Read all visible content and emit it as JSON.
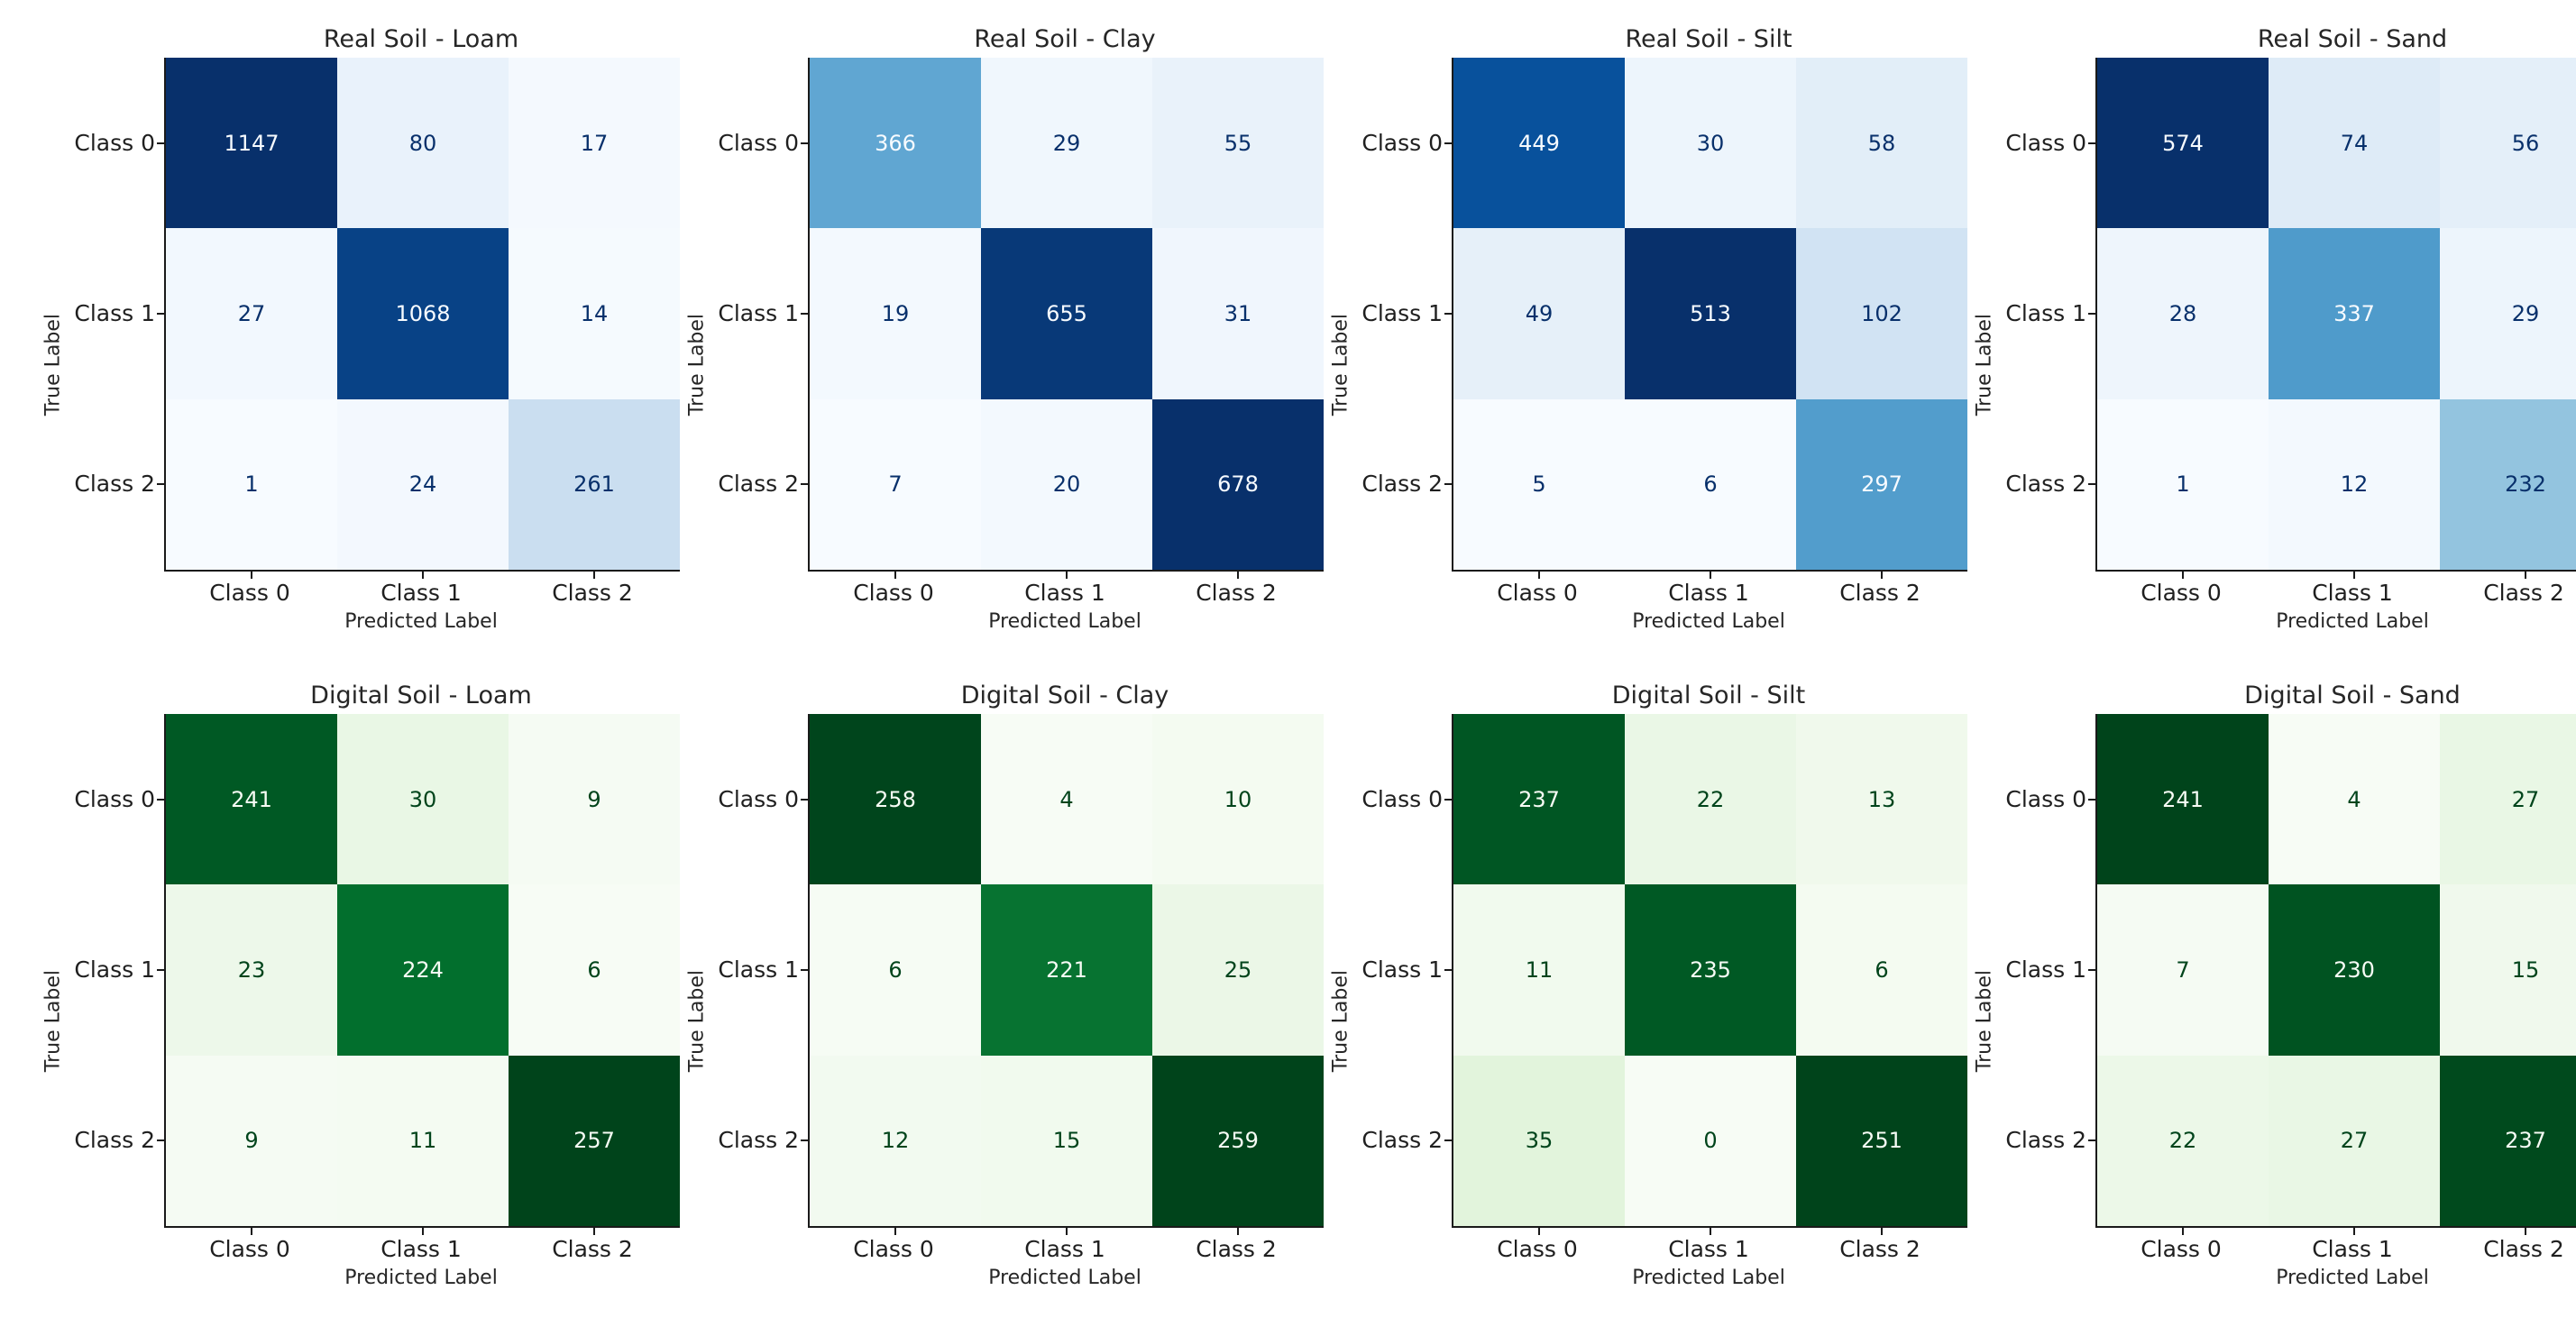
{
  "figure": {
    "background": "#ffffff",
    "spine_color": "#1a1a1a",
    "grid_color": "#c9c9c9",
    "text_color": "#262626"
  },
  "labels": {
    "x_axis": "Predicted Label",
    "y_axis": "True Label",
    "classes": [
      "Class 0",
      "Class 1",
      "Class 2"
    ]
  },
  "colormaps": {
    "Blues": [
      "#f7fbff",
      "#deebf7",
      "#c6dbef",
      "#9ecae1",
      "#6baed6",
      "#4292c6",
      "#2171b5",
      "#08519c",
      "#08306b"
    ],
    "Greens": [
      "#f7fcf5",
      "#e5f5e0",
      "#c7e9c0",
      "#a1d99b",
      "#74c476",
      "#41ab5d",
      "#238b45",
      "#006d2c",
      "#00441b"
    ]
  },
  "chart_data": [
    {
      "type": "heatmap",
      "title": "Real Soil - Loam",
      "colormap": "Blues",
      "xlabel": "Predicted Label",
      "ylabel": "True Label",
      "x_categories": [
        "Class 0",
        "Class 1",
        "Class 2"
      ],
      "y_categories": [
        "Class 0",
        "Class 1",
        "Class 2"
      ],
      "matrix": [
        [
          1147,
          80,
          17
        ],
        [
          27,
          1068,
          14
        ],
        [
          1,
          24,
          261
        ]
      ]
    },
    {
      "type": "heatmap",
      "title": "Real Soil - Clay",
      "colormap": "Blues",
      "xlabel": "Predicted Label",
      "ylabel": "True Label",
      "x_categories": [
        "Class 0",
        "Class 1",
        "Class 2"
      ],
      "y_categories": [
        "Class 0",
        "Class 1",
        "Class 2"
      ],
      "matrix": [
        [
          366,
          29,
          55
        ],
        [
          19,
          655,
          31
        ],
        [
          7,
          20,
          678
        ]
      ]
    },
    {
      "type": "heatmap",
      "title": "Real Soil - Silt",
      "colormap": "Blues",
      "xlabel": "Predicted Label",
      "ylabel": "True Label",
      "x_categories": [
        "Class 0",
        "Class 1",
        "Class 2"
      ],
      "y_categories": [
        "Class 0",
        "Class 1",
        "Class 2"
      ],
      "matrix": [
        [
          449,
          30,
          58
        ],
        [
          49,
          513,
          102
        ],
        [
          5,
          6,
          297
        ]
      ]
    },
    {
      "type": "heatmap",
      "title": "Real Soil - Sand",
      "colormap": "Blues",
      "xlabel": "Predicted Label",
      "ylabel": "True Label",
      "x_categories": [
        "Class 0",
        "Class 1",
        "Class 2"
      ],
      "y_categories": [
        "Class 0",
        "Class 1",
        "Class 2"
      ],
      "matrix": [
        [
          574,
          74,
          56
        ],
        [
          28,
          337,
          29
        ],
        [
          1,
          12,
          232
        ]
      ]
    },
    {
      "type": "heatmap",
      "title": "Digital Soil - Loam",
      "colormap": "Greens",
      "xlabel": "Predicted Label",
      "ylabel": "True Label",
      "x_categories": [
        "Class 0",
        "Class 1",
        "Class 2"
      ],
      "y_categories": [
        "Class 0",
        "Class 1",
        "Class 2"
      ],
      "matrix": [
        [
          241,
          30,
          9
        ],
        [
          23,
          224,
          6
        ],
        [
          9,
          11,
          257
        ]
      ]
    },
    {
      "type": "heatmap",
      "title": "Digital Soil - Clay",
      "colormap": "Greens",
      "xlabel": "Predicted Label",
      "ylabel": "True Label",
      "x_categories": [
        "Class 0",
        "Class 1",
        "Class 2"
      ],
      "y_categories": [
        "Class 0",
        "Class 1",
        "Class 2"
      ],
      "matrix": [
        [
          258,
          4,
          10
        ],
        [
          6,
          221,
          25
        ],
        [
          12,
          15,
          259
        ]
      ]
    },
    {
      "type": "heatmap",
      "title": "Digital Soil - Silt",
      "colormap": "Greens",
      "xlabel": "Predicted Label",
      "ylabel": "True Label",
      "x_categories": [
        "Class 0",
        "Class 1",
        "Class 2"
      ],
      "y_categories": [
        "Class 0",
        "Class 1",
        "Class 2"
      ],
      "matrix": [
        [
          237,
          22,
          13
        ],
        [
          11,
          235,
          6
        ],
        [
          35,
          0,
          251
        ]
      ]
    },
    {
      "type": "heatmap",
      "title": "Digital Soil - Sand",
      "colormap": "Greens",
      "xlabel": "Predicted Label",
      "ylabel": "True Label",
      "x_categories": [
        "Class 0",
        "Class 1",
        "Class 2"
      ],
      "y_categories": [
        "Class 0",
        "Class 1",
        "Class 2"
      ],
      "matrix": [
        [
          241,
          4,
          27
        ],
        [
          7,
          230,
          15
        ],
        [
          22,
          27,
          237
        ]
      ]
    }
  ]
}
